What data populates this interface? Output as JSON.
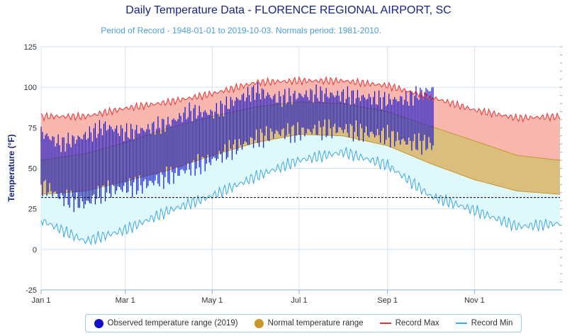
{
  "chart_data": {
    "type": "area",
    "title": "Daily Temperature Data - FLORENCE REGIONAL AIRPORT, SC",
    "subtitle": "Period of Record - 1948-01-01 to 2019-10-03. Normals period: 1981-2010.",
    "ylabel": "Temperature (°F)",
    "xlabel": "",
    "ylim": [
      -25,
      125
    ],
    "y_ticks": [
      -25,
      0,
      25,
      50,
      75,
      100,
      125
    ],
    "x_ticks": [
      "Jan 1",
      "Mar 1",
      "May 1",
      "Jul 1",
      "Sep 1",
      "Nov 1"
    ],
    "grid": true,
    "freezing_line": 32,
    "legend_placement": "bottom",
    "series": [
      {
        "name": "Observed temperature range (2019)",
        "color": "#1111cc",
        "x": [
          "Jan 1",
          "Jan 15",
          "Feb 1",
          "Feb 15",
          "Mar 1",
          "Mar 15",
          "Apr 1",
          "Apr 15",
          "May 1",
          "May 15",
          "Jun 1",
          "Jun 15",
          "Jul 1",
          "Jul 15",
          "Aug 1",
          "Aug 15",
          "Sep 1",
          "Sep 15",
          "Oct 1",
          "Oct 3"
        ],
        "high": [
          72,
          65,
          70,
          76,
          72,
          74,
          78,
          85,
          84,
          91,
          98,
          93,
          95,
          96,
          95,
          94,
          92,
          93,
          99,
          98
        ],
        "low": [
          40,
          32,
          28,
          36,
          38,
          40,
          45,
          50,
          55,
          62,
          68,
          72,
          72,
          74,
          74,
          72,
          70,
          66,
          65,
          64
        ]
      },
      {
        "name": "Normal temperature range",
        "color": "#c9962a",
        "x": [
          "Jan 1",
          "Feb 1",
          "Mar 1",
          "Apr 1",
          "May 1",
          "Jun 1",
          "Jul 1",
          "Aug 1",
          "Sep 1",
          "Oct 1",
          "Nov 1",
          "Dec 1",
          "Dec 31"
        ],
        "high": [
          55,
          59,
          66,
          75,
          82,
          88,
          91,
          90,
          85,
          76,
          67,
          58,
          55
        ],
        "low": [
          34,
          36,
          42,
          49,
          58,
          66,
          71,
          70,
          64,
          53,
          43,
          36,
          34
        ]
      },
      {
        "name": "Record Max",
        "color": "#ee3333",
        "x": [
          "Jan 1",
          "Feb 1",
          "Mar 1",
          "Apr 1",
          "May 1",
          "Jun 1",
          "Jul 1",
          "Aug 1",
          "Sep 1",
          "Oct 1",
          "Nov 1",
          "Dec 1",
          "Dec 31"
        ],
        "values": [
          82,
          82,
          87,
          91,
          96,
          103,
          104,
          104,
          101,
          94,
          86,
          81,
          82
        ]
      },
      {
        "name": "Record Min",
        "color": "#3aa7e6",
        "x": [
          "Jan 1",
          "Feb 1",
          "Mar 1",
          "Apr 1",
          "May 1",
          "Jun 1",
          "Jul 1",
          "Aug 1",
          "Sep 1",
          "Oct 1",
          "Nov 1",
          "Dec 1",
          "Dec 31"
        ],
        "values": [
          18,
          5,
          12,
          24,
          33,
          45,
          55,
          60,
          52,
          33,
          24,
          14,
          16
        ]
      }
    ]
  },
  "legend": {
    "observed": "Observed temperature range (2019)",
    "normal": "Normal temperature range",
    "record_max": "Record Max",
    "record_min": "Record Min"
  },
  "colors": {
    "observed": "#1111cc",
    "normal_fill": "#d9be7e",
    "normal_line": "#c9962a",
    "record_max_line": "#ee3333",
    "record_max_fill": "#f8b7ae",
    "record_min_line": "#3aa7e6",
    "record_min_fill": "#dff8fb",
    "title": "#1a237e",
    "subtitle": "#4a9fd8"
  }
}
